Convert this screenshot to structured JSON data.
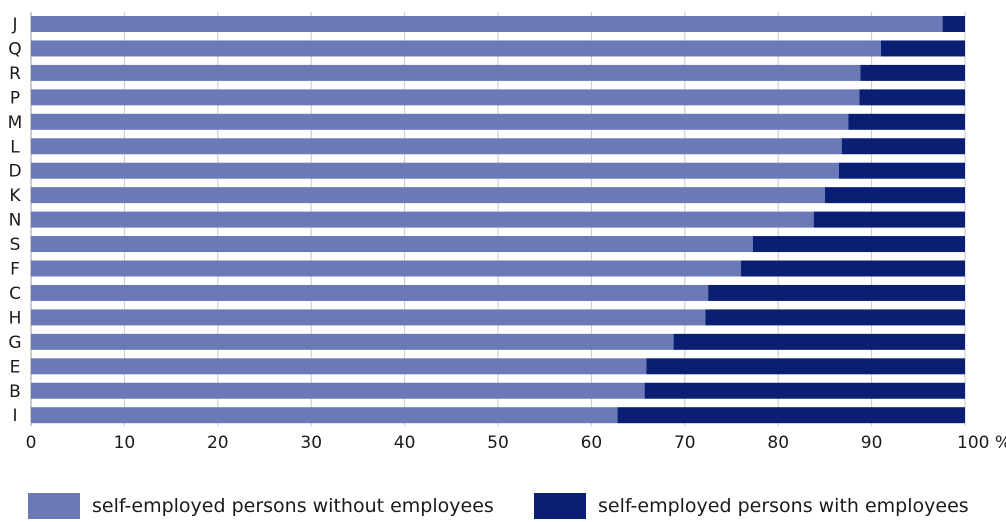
{
  "chart_data": {
    "type": "bar",
    "orientation": "horizontal",
    "stacked": true,
    "categories": [
      "J",
      "Q",
      "R",
      "P",
      "M",
      "L",
      "D",
      "K",
      "N",
      "S",
      "F",
      "C",
      "H",
      "G",
      "E",
      "B",
      "I"
    ],
    "series": [
      {
        "name": "self-employed persons without employees",
        "color": "#6b7ab6",
        "values": [
          97.6,
          91.0,
          88.8,
          88.7,
          87.5,
          86.8,
          86.5,
          85.0,
          83.8,
          77.3,
          76.0,
          72.5,
          72.2,
          68.8,
          65.9,
          65.7,
          62.8
        ]
      },
      {
        "name": "self-employed persons with employees",
        "color": "#0a1e73",
        "values": [
          2.4,
          9.0,
          11.2,
          11.3,
          12.5,
          13.2,
          13.5,
          15.0,
          16.2,
          22.7,
          24.0,
          27.5,
          27.8,
          31.2,
          34.1,
          34.3,
          37.2
        ]
      }
    ],
    "x_ticks": [
      "0",
      "10",
      "20",
      "30",
      "40",
      "50",
      "60",
      "70",
      "80",
      "90",
      "100 %"
    ],
    "xlim": [
      0,
      100
    ],
    "grid": true,
    "legend_position": "bottom"
  },
  "legend": {
    "items": [
      {
        "label": "self-employed persons without employees",
        "color": "#6b7ab6"
      },
      {
        "label": "self-employed persons with employees",
        "color": "#0a1e73"
      }
    ]
  }
}
